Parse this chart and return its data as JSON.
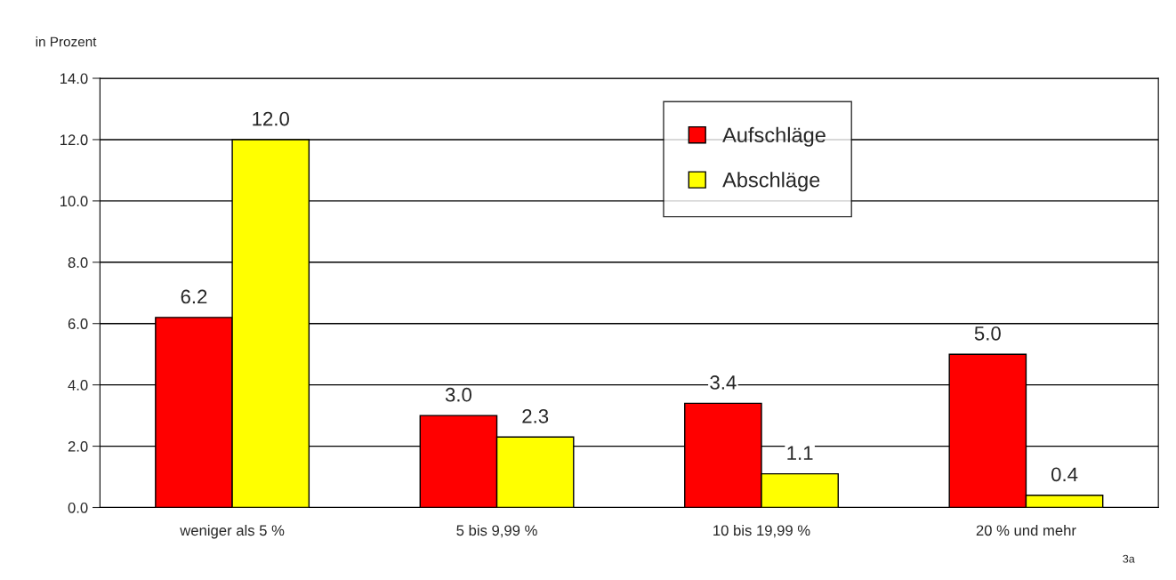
{
  "chart_data": {
    "type": "bar",
    "ylabel": "in Prozent",
    "categories": [
      "weniger als 5 %",
      "5 bis 9,99 %",
      "10 bis 19,99 %",
      "20 % und mehr"
    ],
    "series": [
      {
        "name": "Aufschläge",
        "color": "#ff0000",
        "values": [
          6.2,
          3.0,
          3.4,
          5.0
        ],
        "value_labels": [
          "6.2",
          "3.0",
          "3.4",
          "5.0"
        ]
      },
      {
        "name": "Abschläge",
        "color": "#ffff00",
        "values": [
          12.0,
          2.3,
          1.1,
          0.4
        ],
        "value_labels": [
          "12.0",
          "2.3",
          "1.1",
          "0.4"
        ]
      }
    ],
    "ylim": [
      0,
      14
    ],
    "yticks": [
      {
        "value": 0,
        "label": "0.0"
      },
      {
        "value": 2,
        "label": "2.0"
      },
      {
        "value": 4,
        "label": "4.0"
      },
      {
        "value": 6,
        "label": "6.0"
      },
      {
        "value": 8,
        "label": "8.0"
      },
      {
        "value": 10,
        "label": "10.0"
      },
      {
        "value": 12,
        "label": "12.0"
      },
      {
        "value": 14,
        "label": "14.0"
      }
    ],
    "grid": "y",
    "legend": "top right",
    "annotations": [
      "3a"
    ]
  }
}
